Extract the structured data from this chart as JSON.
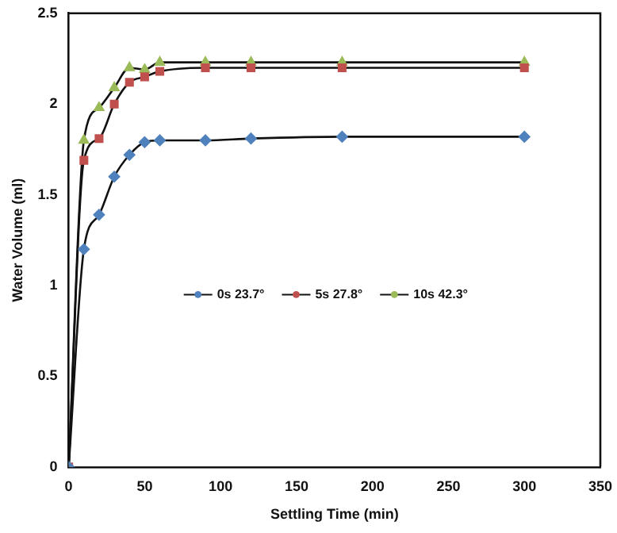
{
  "chart_data": {
    "type": "line",
    "xlabel": "Settling Time (min)",
    "ylabel": "Water Volume (ml)",
    "xlim": [
      0,
      350
    ],
    "xticks": [
      0,
      50,
      100,
      150,
      200,
      250,
      300,
      350
    ],
    "ylim": [
      0,
      2.5
    ],
    "yticks": [
      0,
      0.5,
      1,
      1.5,
      2,
      2.5
    ],
    "grid": false,
    "legend": "center",
    "series": [
      {
        "name": "0s 23.7°",
        "color": "#4f81bd",
        "marker": "diamond",
        "x": [
          0,
          10,
          20,
          30,
          40,
          50,
          60,
          90,
          120,
          180,
          300
        ],
        "values": [
          0,
          1.2,
          1.39,
          1.6,
          1.72,
          1.79,
          1.8,
          1.8,
          1.81,
          1.82,
          1.82
        ]
      },
      {
        "name": "5s 27.8°",
        "color": "#c0504d",
        "marker": "square",
        "x": [
          0,
          10,
          20,
          30,
          40,
          50,
          60,
          90,
          120,
          180,
          300
        ],
        "values": [
          0,
          1.69,
          1.81,
          2.0,
          2.12,
          2.15,
          2.18,
          2.2,
          2.2,
          2.2,
          2.2
        ]
      },
      {
        "name": "10s 42.3°",
        "color": "#9bbb59",
        "marker": "triangle",
        "x": [
          0,
          10,
          20,
          30,
          40,
          50,
          60,
          90,
          120,
          180,
          300
        ],
        "values": [
          0,
          1.8,
          1.98,
          2.09,
          2.2,
          2.19,
          2.23,
          2.23,
          2.23,
          2.23,
          2.23
        ]
      }
    ]
  }
}
